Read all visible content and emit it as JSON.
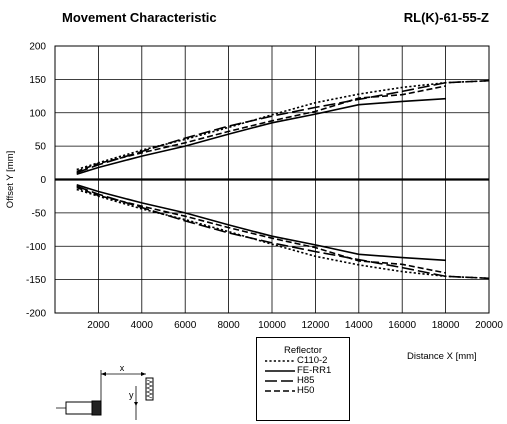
{
  "header": {
    "title": "Movement Characteristic",
    "model": "RL(K)-61-55-Z"
  },
  "diagram": {
    "x_label": "x",
    "y_label": "y"
  },
  "chart_data": {
    "type": "line",
    "title": "Movement Characteristic",
    "subtitle": "RL(K)-61-55-Z",
    "xlabel": "Distance X [mm]",
    "ylabel": "Offset Y [mm]",
    "xlim": [
      0,
      20000
    ],
    "ylim": [
      -200,
      200
    ],
    "xticks": [
      2000,
      4000,
      6000,
      8000,
      10000,
      12000,
      14000,
      16000,
      18000,
      20000
    ],
    "yticks": [
      200,
      150,
      100,
      50,
      0,
      -50,
      -100,
      -150,
      -200
    ],
    "grid": true,
    "legend_title": "Reflector",
    "legend_position": "bottom-center, below plot",
    "series": [
      {
        "name": "C110-2",
        "style": "dotted",
        "x": [
          1000,
          2000,
          4000,
          6000,
          8000,
          10000,
          12000,
          14000,
          16000,
          18000,
          20000
        ],
        "upper": [
          15,
          25,
          44,
          60,
          78,
          97,
          115,
          128,
          138,
          145,
          148
        ],
        "lower": [
          -15,
          -25,
          -44,
          -60,
          -78,
          -97,
          -115,
          -128,
          -138,
          -145,
          -148
        ]
      },
      {
        "name": "FE-RR1",
        "style": "solid",
        "x": [
          1000,
          2000,
          4000,
          6000,
          8000,
          10000,
          12000,
          14000,
          16000,
          18000
        ],
        "upper": [
          8,
          18,
          35,
          50,
          68,
          85,
          98,
          112,
          117,
          121
        ],
        "lower": [
          -8,
          -18,
          -35,
          -50,
          -68,
          -85,
          -98,
          -112,
          -117,
          -121
        ]
      },
      {
        "name": "H85",
        "style": "long-dash",
        "x": [
          1000,
          2000,
          4000,
          6000,
          8000,
          10000,
          12000,
          14000,
          16000,
          18000,
          20000
        ],
        "upper": [
          10,
          22,
          42,
          62,
          80,
          95,
          108,
          120,
          132,
          145,
          148
        ],
        "lower": [
          -10,
          -22,
          -42,
          -62,
          -80,
          -95,
          -108,
          -120,
          -132,
          -145,
          -148
        ]
      },
      {
        "name": "H50",
        "style": "dash",
        "x": [
          1000,
          2000,
          4000,
          6000,
          8000,
          10000,
          12000,
          14000,
          16000,
          18000
        ],
        "upper": [
          12,
          24,
          40,
          55,
          72,
          88,
          102,
          122,
          127,
          140
        ],
        "lower": [
          -12,
          -24,
          -40,
          -55,
          -72,
          -88,
          -102,
          -122,
          -127,
          -140
        ]
      }
    ]
  }
}
